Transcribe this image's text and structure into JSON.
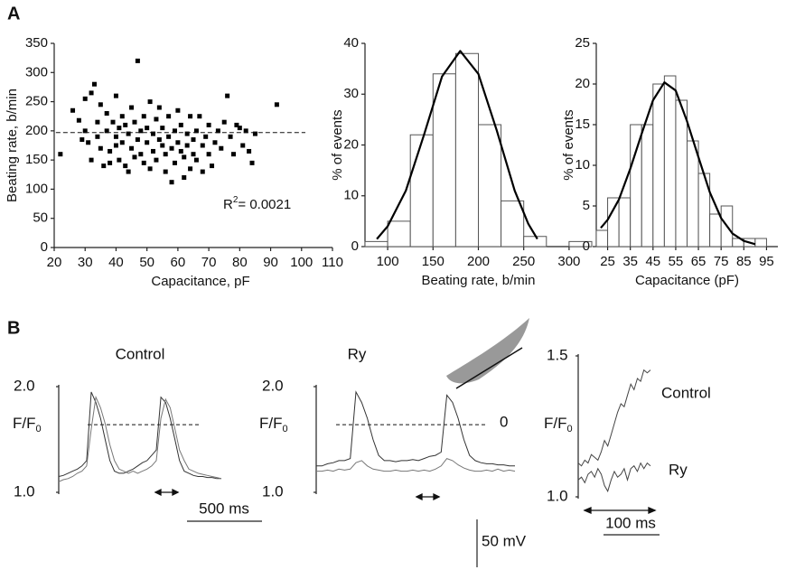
{
  "panel_labels": [
    "A",
    "B"
  ],
  "chart_data": [
    {
      "type": "scatter",
      "xlabel": "Capacitance, pF",
      "ylabel": "Beating rate, b/min",
      "xlim": [
        20,
        110
      ],
      "xticks": [
        20,
        30,
        40,
        50,
        60,
        70,
        80,
        90,
        100,
        110
      ],
      "ylim": [
        0,
        350
      ],
      "yticks": [
        0,
        50,
        100,
        150,
        200,
        250,
        300,
        350
      ],
      "color": "#000000",
      "hline": 197,
      "annotation_parts": [
        "R",
        "2",
        "= 0.0021"
      ],
      "x": [
        22,
        26,
        28,
        29,
        30,
        30,
        31,
        32,
        32,
        33,
        34,
        34,
        35,
        35,
        36,
        37,
        37,
        38,
        38,
        39,
        40,
        40,
        40,
        41,
        41,
        42,
        42,
        43,
        43,
        44,
        44,
        45,
        45,
        46,
        46,
        47,
        47,
        48,
        48,
        49,
        49,
        50,
        50,
        51,
        51,
        52,
        52,
        53,
        53,
        54,
        54,
        55,
        55,
        56,
        56,
        57,
        57,
        58,
        58,
        59,
        59,
        60,
        60,
        61,
        61,
        62,
        62,
        63,
        63,
        64,
        64,
        65,
        65,
        66,
        66,
        67,
        68,
        68,
        69,
        70,
        70,
        71,
        72,
        73,
        74,
        75,
        76,
        77,
        78,
        79,
        80,
        81,
        82,
        83,
        84,
        85,
        92
      ],
      "y": [
        160,
        235,
        218,
        185,
        200,
        255,
        180,
        265,
        150,
        280,
        215,
        190,
        245,
        170,
        140,
        200,
        230,
        165,
        145,
        215,
        190,
        260,
        175,
        205,
        150,
        225,
        180,
        210,
        140,
        130,
        195,
        170,
        240,
        215,
        155,
        320,
        185,
        200,
        160,
        225,
        145,
        205,
        180,
        135,
        250,
        195,
        165,
        220,
        150,
        185,
        240,
        175,
        205,
        160,
        130,
        190,
        225,
        112,
        170,
        200,
        145,
        180,
        235,
        165,
        210,
        155,
        120,
        195,
        175,
        225,
        135,
        185,
        160,
        200,
        150,
        225,
        175,
        130,
        190,
        210,
        160,
        140,
        180,
        200,
        170,
        215,
        260,
        190,
        160,
        210,
        205,
        175,
        200,
        165,
        145,
        195,
        245
      ]
    },
    {
      "type": "histogram",
      "xlabel": "Beating rate, b/min",
      "ylabel": "% of events",
      "bins": [
        75,
        100,
        125,
        150,
        175,
        200,
        225,
        250,
        275,
        300,
        325
      ],
      "counts": [
        1,
        5,
        22,
        34,
        38,
        24,
        9,
        2,
        0,
        1
      ],
      "xlim": [
        75,
        325
      ],
      "xticks": [
        100,
        150,
        200,
        250,
        300
      ],
      "ylim": [
        0,
        40
      ],
      "yticks": [
        0,
        10,
        20,
        30,
        40
      ],
      "color": "#ffffff",
      "edge_color": "#555555",
      "fit": {
        "x": [
          88,
          100,
          120,
          140,
          160,
          180,
          200,
          220,
          240,
          255,
          265
        ],
        "y": [
          1.5,
          4,
          11,
          22,
          33.5,
          38.5,
          34,
          23,
          11,
          4.5,
          1.5
        ]
      }
    },
    {
      "type": "histogram",
      "xlabel": "Capacitance (pF)",
      "ylabel": "% of events",
      "bins": [
        20,
        25,
        30,
        35,
        40,
        45,
        50,
        55,
        60,
        65,
        70,
        75,
        80,
        85,
        90,
        95
      ],
      "counts": [
        2,
        6,
        6,
        15,
        15,
        20,
        21,
        18,
        13,
        9,
        4,
        5,
        1,
        1,
        1
      ],
      "xlim": [
        20,
        100
      ],
      "xticks": [
        25,
        35,
        45,
        55,
        65,
        75,
        85,
        95
      ],
      "ylim": [
        0,
        25
      ],
      "yticks": [
        0,
        5,
        10,
        15,
        20,
        25
      ],
      "color": "#ffffff",
      "edge_color": "#555555",
      "fit": {
        "x": [
          22,
          25,
          30,
          35,
          40,
          45,
          50,
          55,
          60,
          65,
          70,
          75,
          80,
          85,
          90
        ],
        "y": [
          2.3,
          3.3,
          5.8,
          9.6,
          13.9,
          18,
          20.2,
          19.2,
          15.4,
          11,
          6.7,
          3.5,
          1.6,
          0.7,
          0.3
        ]
      }
    },
    {
      "type": "line",
      "title": "Control",
      "ylabel_parts": [
        "F/F",
        "0"
      ],
      "ylim": [
        1.0,
        2.0
      ],
      "yticks": [
        {
          "value": 1.0,
          "label": "1.0"
        },
        {
          "value": 2.0,
          "label": "2.0"
        }
      ],
      "hline": 1.64,
      "scale_bar": "500 ms",
      "series": [
        {
          "color": "#333333",
          "values": [
            1.15,
            1.16,
            1.18,
            1.2,
            1.22,
            1.25,
            1.3,
            1.95,
            1.85,
            1.7,
            1.5,
            1.3,
            1.2,
            1.18,
            1.18,
            1.2,
            1.22,
            1.25,
            1.28,
            1.3,
            1.35,
            1.4,
            1.9,
            1.85,
            1.7,
            1.5,
            1.3,
            1.2,
            1.18,
            1.16,
            1.15,
            1.15,
            1.14,
            1.14,
            1.13,
            1.13
          ]
        },
        {
          "color": "#777777",
          "values": [
            1.1,
            1.12,
            1.13,
            1.15,
            1.18,
            1.2,
            1.25,
            1.6,
            1.9,
            1.8,
            1.65,
            1.45,
            1.3,
            1.22,
            1.2,
            1.18,
            1.2,
            1.18,
            1.2,
            1.22,
            1.25,
            1.3,
            1.7,
            1.88,
            1.8,
            1.6,
            1.4,
            1.3,
            1.22,
            1.2,
            1.18,
            1.17,
            1.16,
            1.15,
            1.14,
            1.13
          ]
        }
      ]
    },
    {
      "type": "line",
      "title": "Ry",
      "ylabel_parts": [
        "F/F",
        "0"
      ],
      "ylim": [
        1.0,
        2.0
      ],
      "yticks": [
        {
          "value": 1.0,
          "label": "1.0"
        },
        {
          "value": 2.0,
          "label": "2.0"
        }
      ],
      "hline": 1.64,
      "hline_label": "0",
      "scale_bar": "50 mV",
      "series": [
        {
          "color": "#333333",
          "values": [
            1.25,
            1.25,
            1.27,
            1.28,
            1.3,
            1.3,
            1.32,
            1.95,
            1.85,
            1.7,
            1.5,
            1.35,
            1.3,
            1.3,
            1.29,
            1.3,
            1.3,
            1.31,
            1.3,
            1.32,
            1.34,
            1.35,
            1.38,
            1.92,
            1.85,
            1.7,
            1.5,
            1.35,
            1.3,
            1.28,
            1.27,
            1.27,
            1.26,
            1.26,
            1.25,
            1.25
          ]
        },
        {
          "color": "#777777",
          "values": [
            1.2,
            1.2,
            1.21,
            1.2,
            1.22,
            1.21,
            1.22,
            1.28,
            1.3,
            1.25,
            1.22,
            1.21,
            1.2,
            1.2,
            1.21,
            1.2,
            1.2,
            1.21,
            1.2,
            1.21,
            1.2,
            1.22,
            1.25,
            1.32,
            1.3,
            1.26,
            1.23,
            1.21,
            1.2,
            1.2,
            1.21,
            1.2,
            1.22,
            1.2,
            1.21,
            1.2
          ]
        }
      ]
    },
    {
      "type": "line",
      "ylabel_parts": [
        "F/F",
        "0"
      ],
      "ylim": [
        1.0,
        1.5
      ],
      "yticks": [
        {
          "value": 1.0,
          "label": "1.0"
        },
        {
          "value": 1.5,
          "label": "1.5"
        }
      ],
      "scale_bar": "100 ms",
      "series": [
        {
          "name": "Control",
          "color": "#444444",
          "values": [
            1.12,
            1.11,
            1.13,
            1.12,
            1.15,
            1.14,
            1.13,
            1.16,
            1.2,
            1.18,
            1.22,
            1.26,
            1.3,
            1.33,
            1.32,
            1.36,
            1.4,
            1.38,
            1.42,
            1.41,
            1.45,
            1.44,
            1.45
          ]
        },
        {
          "name": "Ry",
          "color": "#444444",
          "values": [
            1.06,
            1.07,
            1.05,
            1.08,
            1.09,
            1.07,
            1.1,
            1.08,
            1.04,
            1.02,
            1.06,
            1.09,
            1.07,
            1.08,
            1.1,
            1.06,
            1.1,
            1.11,
            1.09,
            1.12,
            1.1,
            1.12,
            1.11
          ]
        }
      ]
    }
  ]
}
